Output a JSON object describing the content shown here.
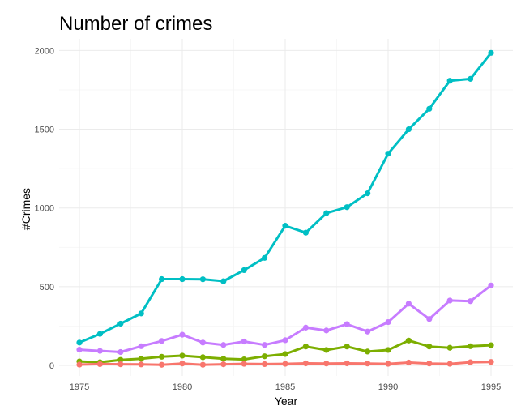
{
  "chart_data": {
    "type": "line",
    "title": "Number of crimes",
    "xlabel": "Year",
    "ylabel": "#Crimes",
    "xlim": [
      1975,
      1995
    ],
    "ylim": [
      0,
      2000
    ],
    "x_ticks": [
      1975,
      1980,
      1985,
      1990,
      1995
    ],
    "y_ticks": [
      0,
      500,
      1000,
      1500,
      2000
    ],
    "grid": true,
    "legend": "none",
    "x": [
      1975,
      1976,
      1977,
      1978,
      1979,
      1980,
      1981,
      1982,
      1983,
      1984,
      1985,
      1986,
      1987,
      1988,
      1989,
      1990,
      1991,
      1992,
      1993,
      1994,
      1995
    ],
    "series": [
      {
        "color": "#00BFC4",
        "values": [
          145,
          200,
          265,
          330,
          548,
          548,
          547,
          535,
          605,
          683,
          887,
          843,
          967,
          1005,
          1093,
          1345,
          1500,
          1630,
          1808,
          1820,
          1985
        ]
      },
      {
        "color": "#C77CFF",
        "values": [
          100,
          92,
          85,
          122,
          155,
          195,
          145,
          130,
          152,
          130,
          160,
          240,
          222,
          262,
          215,
          275,
          392,
          295,
          412,
          408,
          508
        ]
      },
      {
        "color": "#7CAE00",
        "values": [
          25,
          20,
          35,
          42,
          55,
          62,
          52,
          42,
          38,
          58,
          72,
          120,
          98,
          120,
          88,
          98,
          158,
          120,
          112,
          122,
          128
        ]
      },
      {
        "color": "#F8766D",
        "values": [
          5,
          8,
          7,
          6,
          4,
          12,
          4,
          7,
          10,
          8,
          10,
          13,
          12,
          13,
          12,
          10,
          18,
          12,
          10,
          20,
          22
        ]
      }
    ]
  }
}
